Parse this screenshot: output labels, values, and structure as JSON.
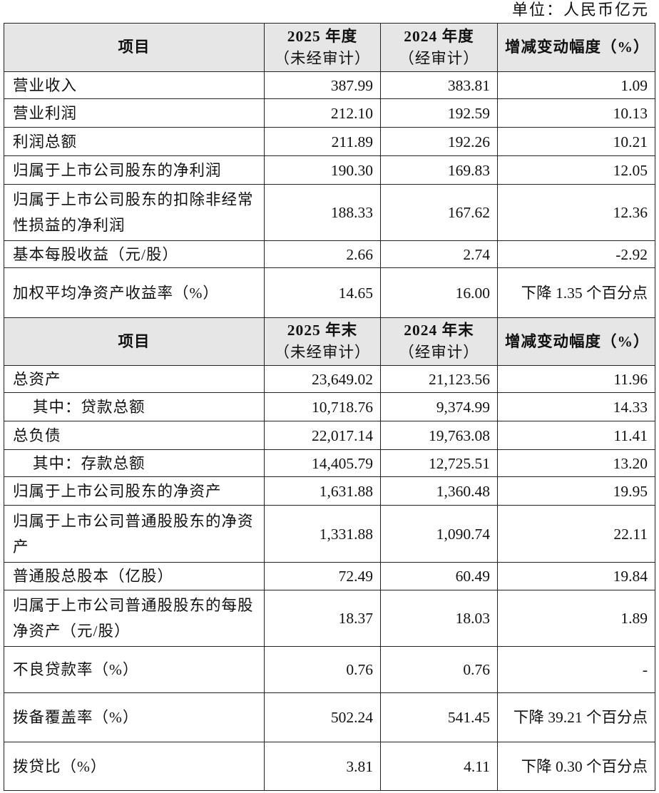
{
  "unit_label": "单位：人民币亿元",
  "sections": [
    {
      "header": {
        "item": "项目",
        "col1": "2025 年度",
        "col1_sub": "（未经审计）",
        "col2": "2024 年度",
        "col2_sub": "（经审计）",
        "col3": "增减变动幅度（%）"
      },
      "rows": [
        {
          "label": "营业收入",
          "v2025": "387.99",
          "v2024": "383.81",
          "change": "1.09"
        },
        {
          "label": "营业利润",
          "v2025": "212.10",
          "v2024": "192.59",
          "change": "10.13"
        },
        {
          "label": "利润总额",
          "v2025": "211.89",
          "v2024": "192.26",
          "change": "10.21"
        },
        {
          "label": "归属于上市公司股东的净利润",
          "v2025": "190.30",
          "v2024": "169.83",
          "change": "12.05"
        },
        {
          "label": "归属于上市公司股东的扣除非经常性损益的净利润",
          "v2025": "188.33",
          "v2024": "167.62",
          "change": "12.36"
        },
        {
          "label": "基本每股收益（元/股）",
          "v2025": "2.66",
          "v2024": "2.74",
          "change": "-2.92"
        },
        {
          "label": "加权平均净资产收益率（%）",
          "v2025": "14.65",
          "v2024": "16.00",
          "change": "下降 1.35 个百分点"
        }
      ]
    },
    {
      "header": {
        "item": "项目",
        "col1": "2025 年末",
        "col1_sub": "（未经审计）",
        "col2": "2024 年末",
        "col2_sub": "（经审计）",
        "col3": "增减变动幅度（%）"
      },
      "rows": [
        {
          "label": "总资产",
          "v2025": "23,649.02",
          "v2024": "21,123.56",
          "change": "11.96"
        },
        {
          "label": "其中：贷款总额",
          "v2025": "10,718.76",
          "v2024": "9,374.99",
          "change": "14.33",
          "indent": true
        },
        {
          "label": "总负债",
          "v2025": "22,017.14",
          "v2024": "19,763.08",
          "change": "11.41"
        },
        {
          "label": "其中：存款总额",
          "v2025": "14,405.79",
          "v2024": "12,725.51",
          "change": "13.20",
          "indent": true
        },
        {
          "label": "归属于上市公司股东的净资产",
          "v2025": "1,631.88",
          "v2024": "1,360.48",
          "change": "19.95"
        },
        {
          "label": "归属于上市公司普通股股东的净资产",
          "v2025": "1,331.88",
          "v2024": "1,090.74",
          "change": "22.11"
        },
        {
          "label": "普通股总股本（亿股）",
          "v2025": "72.49",
          "v2024": "60.49",
          "change": "19.84"
        },
        {
          "label": "归属于上市公司普通股股东的每股净资产（元/股）",
          "v2025": "18.37",
          "v2024": "18.03",
          "change": "1.89"
        },
        {
          "label": "不良贷款率（%）",
          "v2025": "0.76",
          "v2024": "0.76",
          "change": "-"
        },
        {
          "label": "拨备覆盖率（%）",
          "v2025": "502.24",
          "v2024": "541.45",
          "change": "下降 39.21 个百分点"
        },
        {
          "label": "拨贷比（%）",
          "v2025": "3.81",
          "v2024": "4.11",
          "change": "下降 0.30 个百分点"
        }
      ]
    }
  ]
}
